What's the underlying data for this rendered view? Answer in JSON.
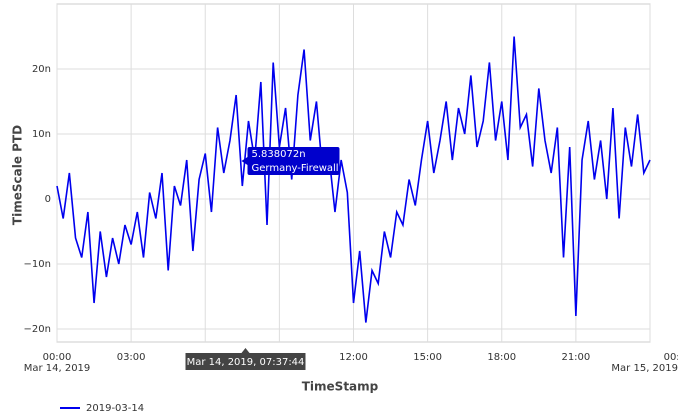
{
  "chart_data": {
    "type": "line",
    "y_axis_label": "TimeScale PTD",
    "x_axis_label": "TimeStamp",
    "xlim": [
      0,
      24
    ],
    "xticks": [
      {
        "value": 0,
        "label": "00:00",
        "date": "Mar 14, 2019"
      },
      {
        "value": 3,
        "label": "03:00"
      },
      {
        "value": 6,
        "label": "06:00"
      },
      {
        "value": 9,
        "label": "09:00"
      },
      {
        "value": 12,
        "label": "12:00"
      },
      {
        "value": 15,
        "label": "15:00"
      },
      {
        "value": 18,
        "label": "18:00"
      },
      {
        "value": 21,
        "label": "21:00"
      },
      {
        "value": 24,
        "label": "00:00",
        "date": "Mar 15, 2019"
      }
    ],
    "ylim": [
      -2.2e-08,
      3e-08
    ],
    "yticks": [
      {
        "value": -2e-08,
        "label": "−20n"
      },
      {
        "value": -1e-08,
        "label": "−10n"
      },
      {
        "value": 0,
        "label": "0"
      },
      {
        "value": 1e-08,
        "label": "10n"
      },
      {
        "value": 2e-08,
        "label": "20n"
      }
    ],
    "grid": true,
    "x": [
      0,
      0.25,
      0.5,
      0.75,
      1,
      1.25,
      1.5,
      1.75,
      2,
      2.25,
      2.5,
      2.75,
      3,
      3.25,
      3.5,
      3.75,
      4,
      4.25,
      4.5,
      4.75,
      5,
      5.25,
      5.5,
      5.75,
      6,
      6.25,
      6.5,
      6.75,
      7,
      7.25,
      7.5,
      7.75,
      8,
      8.25,
      8.5,
      8.75,
      9,
      9.25,
      9.5,
      9.75,
      10,
      10.25,
      10.5,
      10.75,
      11,
      11.25,
      11.5,
      11.75,
      12,
      12.25,
      12.5,
      12.75,
      13,
      13.25,
      13.5,
      13.75,
      14,
      14.25,
      14.5,
      14.75,
      15,
      15.25,
      15.5,
      15.75,
      16,
      16.25,
      16.5,
      16.75,
      17,
      17.25,
      17.5,
      17.75,
      18,
      18.25,
      18.5,
      18.75,
      19,
      19.25,
      19.5,
      19.75,
      20,
      20.25,
      20.5,
      20.75,
      21,
      21.25,
      21.5,
      21.75,
      22,
      22.25,
      22.5,
      22.75,
      23,
      23.25,
      23.5,
      23.75,
      24
    ],
    "series": [
      {
        "name": "2019-03-14",
        "color": "#0000ee",
        "values": [
          2e-09,
          -3e-09,
          4e-09,
          -6e-09,
          -9e-09,
          -2e-09,
          -1.6e-08,
          -5e-09,
          -1.2e-08,
          -6e-09,
          -1e-08,
          -4e-09,
          -7e-09,
          -2e-09,
          -9e-09,
          1e-09,
          -3e-09,
          4e-09,
          -1.1e-08,
          2e-09,
          -1e-09,
          6e-09,
          -8e-09,
          3e-09,
          7e-09,
          -2e-09,
          1.1e-08,
          4e-09,
          9e-09,
          1.6e-08,
          2e-09,
          1.2e-08,
          6e-09,
          1.8e-08,
          -4e-09,
          2.1e-08,
          8e-09,
          1.4e-08,
          3e-09,
          1.6e-08,
          2.3e-08,
          9e-09,
          1.5e-08,
          4e-09,
          7e-09,
          -2e-09,
          6e-09,
          1e-09,
          -1.6e-08,
          -8e-09,
          -1.9e-08,
          -1.1e-08,
          -1.3e-08,
          -5e-09,
          -9e-09,
          -2e-09,
          -4e-09,
          3e-09,
          -1e-09,
          6e-09,
          1.2e-08,
          4e-09,
          9e-09,
          1.5e-08,
          6e-09,
          1.4e-08,
          1e-08,
          1.9e-08,
          8e-09,
          1.2e-08,
          2.1e-08,
          9e-09,
          1.5e-08,
          6e-09,
          2.5e-08,
          1.1e-08,
          1.3e-08,
          5e-09,
          1.7e-08,
          9e-09,
          4e-09,
          1.1e-08,
          -9e-09,
          8e-09,
          -1.8e-08,
          6e-09,
          1.2e-08,
          3e-09,
          9e-09,
          0,
          1.4e-08,
          -3e-09,
          1.1e-08,
          5e-09,
          1.3e-08,
          4e-09,
          6e-09
        ]
      }
    ],
    "tooltip": {
      "x": 7.628889,
      "x_label": "Mar 14, 2019, 07:37:44",
      "value": 5.838072e-09,
      "value_label": "5.838072n",
      "series_label": "Germany-Firewall"
    }
  }
}
